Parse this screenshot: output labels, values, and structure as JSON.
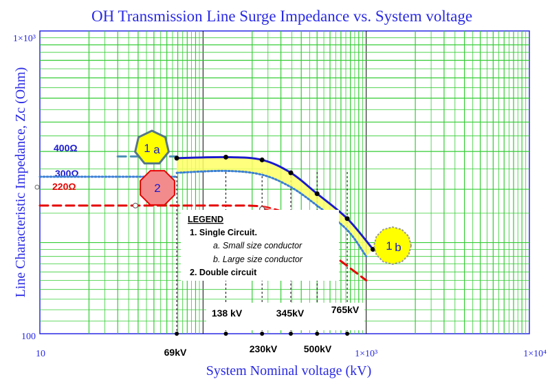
{
  "chart_data": {
    "type": "line",
    "title": "OH Transmission Line Surge Impedance vs. System voltage",
    "xlabel": "System Nominal voltage (kV)",
    "ylabel": "Line Characteristic Impedance, Zc (Ohm)",
    "x_scale": "log",
    "y_scale": "log",
    "xlim": [
      10,
      10000
    ],
    "ylim": [
      100,
      1000
    ],
    "grid": true,
    "x_tick_labels": [
      {
        "value": 10,
        "label": "10"
      },
      {
        "value": 1000,
        "label": "1×10³"
      },
      {
        "value": 10000,
        "label": "1×10⁴"
      }
    ],
    "y_tick_labels": [
      {
        "value": 1000,
        "label": "1×10³"
      },
      {
        "value": 100,
        "label": "100"
      }
    ],
    "voltage_labels": [
      {
        "value": 69,
        "label": "69kV"
      },
      {
        "value": 138,
        "label": "138 kV"
      },
      {
        "value": 230,
        "label": "230kV"
      },
      {
        "value": 345,
        "label": "345kV"
      },
      {
        "value": 500,
        "label": "500kV"
      },
      {
        "value": 765,
        "label": "765kV"
      }
    ],
    "reference_labels": [
      {
        "value": 400,
        "label": "400Ω",
        "color": "#1a1acc"
      },
      {
        "value": 300,
        "label": "300Ω",
        "color": "#1a1acc"
      },
      {
        "value": 220,
        "label": "220Ω",
        "color": "#e60000"
      }
    ],
    "series": [
      {
        "x": [
          30,
          69
        ],
        "y": [
          385,
          385
        ],
        "color": "#4a8fb5",
        "style": "dashed"
      },
      {
        "x": [
          69,
          138,
          230,
          345,
          500,
          765,
          1100
        ],
        "y": [
          380,
          383,
          375,
          340,
          290,
          240,
          190
        ],
        "color": "#1a1acc",
        "style": "solid"
      },
      {
        "x": [
          10,
          69
        ],
        "y": [
          330,
          330
        ],
        "color": "#3a7fd5",
        "style": "dotted"
      },
      {
        "x": [
          69,
          138,
          230,
          345,
          500,
          765,
          1000
        ],
        "y": [
          340,
          345,
          335,
          305,
          265,
          220,
          180
        ],
        "color": "#3a7fd5",
        "style": "dotted"
      },
      {
        "x": [
          10,
          69,
          138,
          230,
          345
        ],
        "y": [
          265,
          265,
          265,
          263,
          248
        ],
        "color": "#e60000",
        "style": "dashed"
      },
      {
        "x": [
          600,
          1000
        ],
        "y": [
          185,
          150
        ],
        "color": "#e60000",
        "style": "dashed"
      },
      {
        "x": [
          230,
          345,
          500
        ],
        "y": [
          258,
          240,
          210
        ],
        "color": "#e60000",
        "style": "solid"
      }
    ],
    "legend": {
      "heading": "LEGEND",
      "item_1": "1.   Single Circuit.",
      "item_1a": "a.   Small size conductor",
      "item_1b": "b.   Large size conductor",
      "item_2": "2.   Double circuit"
    },
    "badges": [
      {
        "number": "1",
        "letter": "a"
      },
      {
        "number": "2",
        "letter": ""
      },
      {
        "number": "1",
        "letter": "b"
      }
    ],
    "colors": {
      "grid": "#33cc33",
      "axis": "#2929e6",
      "band_fill": "#ffff66",
      "badge_yellow": "#ffff00",
      "badge_red": "#f28c8c"
    }
  }
}
